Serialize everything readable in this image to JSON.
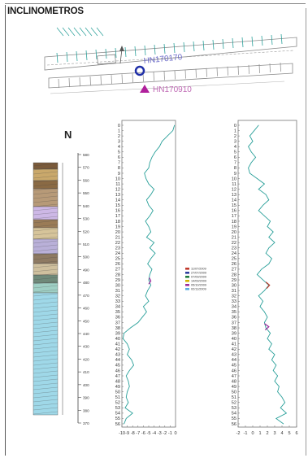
{
  "title": "INCLINOMETROS",
  "map": {
    "label_blue": "HN170170",
    "label_magenta": "HN170910",
    "color_blue": "#1f2fa8",
    "color_magenta": "#b01f9b",
    "color_lines": "#2aa09a"
  },
  "strat_column": {
    "north_label": "N",
    "elevation_ticks": [
      "580",
      "570",
      "560",
      "550",
      "540",
      "530",
      "520",
      "510",
      "500",
      "490",
      "480",
      "470",
      "460",
      "450",
      "440",
      "430",
      "420",
      "410",
      "400",
      "390",
      "380",
      "370"
    ]
  },
  "legend": {
    "entries": [
      {
        "label": "11/07/2009",
        "color": "#c0392b"
      },
      {
        "label": "27/07/2009",
        "color": "#2c3e9e"
      },
      {
        "label": "07/09/2009",
        "color": "#1e7b3c"
      },
      {
        "label": "14/09/2009",
        "color": "#d4b400"
      },
      {
        "label": "05/10/2009",
        "color": "#9b2a9b"
      },
      {
        "label": "02/11/2009",
        "color": "#5dade2"
      }
    ]
  },
  "chart_data": [
    {
      "type": "line",
      "orientation": "depth-vertical",
      "depth_ticks": [
        "0",
        "1",
        "2",
        "3",
        "4",
        "5",
        "6",
        "7",
        "8",
        "9",
        "10",
        "11",
        "12",
        "13",
        "14",
        "15",
        "16",
        "17",
        "18",
        "19",
        "20",
        "21",
        "22",
        "23",
        "24",
        "25",
        "26",
        "27",
        "28",
        "29",
        "30",
        "31",
        "32",
        "33",
        "34",
        "35",
        "36",
        "37",
        "38",
        "39",
        "40",
        "41",
        "42",
        "43",
        "44",
        "45",
        "46",
        "47",
        "48",
        "49",
        "50",
        "51",
        "52",
        "53",
        "54",
        "55",
        "56"
      ],
      "x_ticks": [
        "-10",
        "-9",
        "-8",
        "-7",
        "-6",
        "-5",
        "-4",
        "-3",
        "-2",
        "-1",
        "0"
      ],
      "xlim": [
        -10,
        0
      ],
      "ylim": [
        0,
        56
      ],
      "series": [
        {
          "color": "#2aa09a",
          "depth": [
            0,
            1,
            2,
            3,
            4,
            5,
            6,
            7,
            8,
            9,
            10,
            11,
            12,
            13,
            14,
            15,
            16,
            17,
            18,
            19,
            20,
            21,
            22,
            23,
            24,
            25,
            26,
            27,
            28,
            29,
            30,
            31,
            32,
            33,
            34,
            35,
            36,
            37,
            38,
            39,
            40,
            41,
            42,
            43,
            44,
            45,
            46,
            47,
            48,
            49,
            50,
            51,
            52,
            53,
            54,
            55,
            56
          ],
          "values": [
            -0.2,
            -0.5,
            -1.5,
            -2.5,
            -3.0,
            -3.8,
            -4.4,
            -4.8,
            -5.0,
            -5.8,
            -5.5,
            -5.0,
            -4.0,
            -4.6,
            -5.4,
            -5.0,
            -4.2,
            -4.8,
            -5.6,
            -5.0,
            -4.6,
            -5.4,
            -4.0,
            -4.8,
            -3.8,
            -4.6,
            -5.2,
            -4.4,
            -4.8,
            -5.0,
            -4.6,
            -5.2,
            -5.6,
            -5.0,
            -6.0,
            -5.4,
            -6.2,
            -7.0,
            -8.4,
            -9.6,
            -9.8,
            -9.0,
            -8.6,
            -9.0,
            -8.2,
            -7.8,
            -8.6,
            -9.2,
            -8.8,
            -8.6,
            -9.0,
            -9.2,
            -8.8,
            -9.4,
            -8.0,
            -9.2,
            -9.6
          ]
        }
      ]
    },
    {
      "type": "line",
      "orientation": "depth-vertical",
      "depth_ticks": [
        "0",
        "1",
        "2",
        "3",
        "4",
        "5",
        "6",
        "7",
        "8",
        "9",
        "10",
        "11",
        "12",
        "13",
        "14",
        "15",
        "16",
        "17",
        "18",
        "19",
        "20",
        "21",
        "22",
        "23",
        "24",
        "25",
        "26",
        "27",
        "28",
        "29",
        "30",
        "31",
        "32",
        "33",
        "34",
        "35",
        "36",
        "37",
        "38",
        "39",
        "40",
        "41",
        "42",
        "43",
        "44",
        "45",
        "46",
        "47",
        "48",
        "49",
        "50",
        "51",
        "52",
        "53",
        "54",
        "55",
        "56"
      ],
      "x_ticks": [
        "-2",
        "-1",
        "0",
        "1",
        "2",
        "3",
        "4",
        "5",
        "6"
      ],
      "xlim": [
        -2,
        6
      ],
      "ylim": [
        0,
        56
      ],
      "series": [
        {
          "color": "#2aa09a",
          "depth": [
            0,
            1,
            2,
            3,
            4,
            5,
            6,
            7,
            8,
            9,
            10,
            11,
            12,
            13,
            14,
            15,
            16,
            17,
            18,
            19,
            20,
            21,
            22,
            23,
            24,
            25,
            26,
            27,
            28,
            29,
            30,
            31,
            32,
            33,
            34,
            35,
            36,
            37,
            38,
            39,
            40,
            41,
            42,
            43,
            44,
            45,
            46,
            47,
            48,
            49,
            50,
            51,
            52,
            53,
            54,
            55,
            56
          ],
          "values": [
            0.8,
            0.2,
            -0.4,
            0.0,
            -0.6,
            -0.2,
            0.4,
            -0.2,
            -0.6,
            -0.4,
            0.6,
            1.6,
            0.8,
            1.8,
            2.2,
            1.4,
            0.8,
            1.6,
            2.4,
            2.0,
            2.8,
            2.2,
            3.0,
            2.2,
            1.8,
            2.6,
            2.2,
            1.2,
            0.6,
            1.4,
            2.2,
            1.6,
            0.8,
            1.4,
            1.0,
            1.6,
            2.0,
            1.6,
            1.8,
            2.4,
            2.0,
            2.6,
            2.2,
            3.0,
            2.6,
            3.2,
            2.8,
            3.4,
            3.0,
            3.6,
            3.4,
            4.0,
            4.4,
            3.8,
            4.6,
            3.2,
            4.2
          ]
        }
      ]
    }
  ]
}
